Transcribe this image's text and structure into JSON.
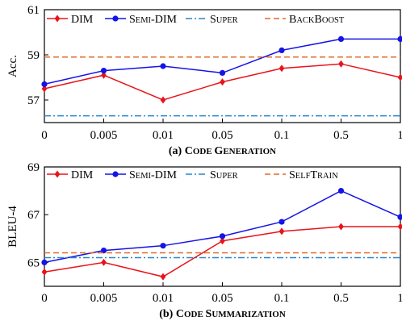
{
  "chart_data": [
    {
      "type": "line",
      "caption": "(a) Code Generation",
      "ylabel": "Acc.",
      "categories": [
        "0",
        "0.005",
        "0.01",
        "0.05",
        "0.1",
        "0.5",
        "1"
      ],
      "ylim": [
        56,
        61
      ],
      "yticks": [
        57,
        59,
        61
      ],
      "grid": false,
      "legend_position": "top",
      "series": [
        {
          "name": "DIM",
          "color": "#e8141b",
          "marker": "diamond",
          "values": [
            57.5,
            58.1,
            57.0,
            57.8,
            58.4,
            58.6,
            58.0
          ]
        },
        {
          "name": "Semi-DIM",
          "color": "#1414e6",
          "marker": "circle",
          "values": [
            57.7,
            58.3,
            58.5,
            58.2,
            59.2,
            59.7,
            59.7
          ]
        },
        {
          "name": "Super",
          "color": "#2a85c8",
          "style": "dashdot",
          "values": [
            56.3,
            56.3,
            56.3,
            56.3,
            56.3,
            56.3,
            56.3
          ]
        },
        {
          "name": "BackBoost",
          "color": "#e06a2a",
          "style": "dashed",
          "values": [
            58.9,
            58.9,
            58.9,
            58.9,
            58.9,
            58.9,
            58.9
          ]
        }
      ]
    },
    {
      "type": "line",
      "caption": "(b) Code Summarization",
      "ylabel": "BLEU-4",
      "categories": [
        "0",
        "0.005",
        "0.01",
        "0.05",
        "0.1",
        "0.5",
        "1"
      ],
      "ylim": [
        64,
        69
      ],
      "yticks": [
        65,
        67,
        69
      ],
      "grid": false,
      "legend_position": "top",
      "series": [
        {
          "name": "DIM",
          "color": "#e8141b",
          "marker": "diamond",
          "values": [
            64.6,
            65.0,
            64.4,
            65.9,
            66.3,
            66.5,
            66.5
          ]
        },
        {
          "name": "Semi-DIM",
          "color": "#1414e6",
          "marker": "circle",
          "values": [
            65.0,
            65.5,
            65.7,
            66.1,
            66.7,
            68.0,
            66.9
          ]
        },
        {
          "name": "Super",
          "color": "#2a85c8",
          "style": "dashdot",
          "values": [
            65.2,
            65.2,
            65.2,
            65.2,
            65.2,
            65.2,
            65.2
          ]
        },
        {
          "name": "SelfTrain",
          "color": "#e06a2a",
          "style": "dashed",
          "values": [
            65.4,
            65.4,
            65.4,
            65.4,
            65.4,
            65.4,
            65.4
          ]
        }
      ]
    }
  ]
}
